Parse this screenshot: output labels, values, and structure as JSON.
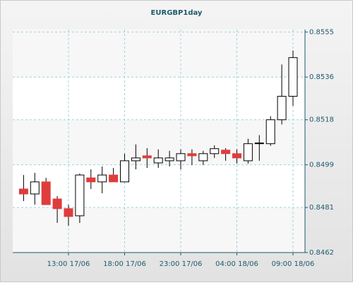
{
  "chart_data": {
    "type": "candlestick",
    "title": "EURGBP1day",
    "categories": [
      null,
      null,
      null,
      null,
      "13:00 17/06",
      null,
      null,
      null,
      null,
      "18:00 17/06",
      null,
      null,
      null,
      null,
      "23:00 17/06",
      null,
      null,
      null,
      null,
      "04:00 18/06",
      null,
      null,
      null,
      null,
      "09:00 18/06"
    ],
    "open": [
      0.84888,
      0.84867,
      0.84918,
      0.84846,
      0.84805,
      0.84775,
      0.84935,
      0.84918,
      0.84947,
      0.84918,
      0.85007,
      0.85028,
      0.84998,
      0.85007,
      0.85007,
      0.85037,
      0.85007,
      0.85037,
      0.85052,
      0.85037,
      0.85007,
      0.85079,
      0.85079,
      0.8518,
      0.85279
    ],
    "high": [
      0.84947,
      0.84956,
      0.84935,
      0.84858,
      0.84822,
      0.84953,
      0.84971,
      0.84983,
      0.84977,
      0.85037,
      0.85076,
      0.8506,
      0.85055,
      0.85049,
      0.85055,
      0.85055,
      0.85049,
      0.85072,
      0.8506,
      0.85055,
      0.851,
      0.85115,
      0.85195,
      0.85413,
      0.85472
    ],
    "low": [
      0.84837,
      0.84822,
      0.84822,
      0.84745,
      0.84733,
      0.84745,
      0.84888,
      0.8487,
      0.84918,
      0.84918,
      0.84971,
      0.84977,
      0.84977,
      0.84983,
      0.84971,
      0.84989,
      0.84989,
      0.85019,
      0.85007,
      0.84995,
      0.84995,
      0.85007,
      0.8507,
      0.8516,
      0.85239
    ],
    "close": [
      0.84867,
      0.84918,
      0.84822,
      0.84805,
      0.84772,
      0.84947,
      0.84918,
      0.84947,
      0.84918,
      0.85007,
      0.85019,
      0.85019,
      0.85019,
      0.85019,
      0.85037,
      0.85028,
      0.85037,
      0.85058,
      0.85037,
      0.85019,
      0.85079,
      0.85082,
      0.8518,
      0.85279,
      0.85442
    ],
    "up_color": "#ffffff",
    "down_color": "#e03c3c",
    "ylim": [
      0.8462,
      0.8556
    ],
    "yticks": [
      0.8462,
      0.8481,
      0.8499,
      0.8518,
      0.8536,
      0.8555
    ],
    "grid": true
  }
}
